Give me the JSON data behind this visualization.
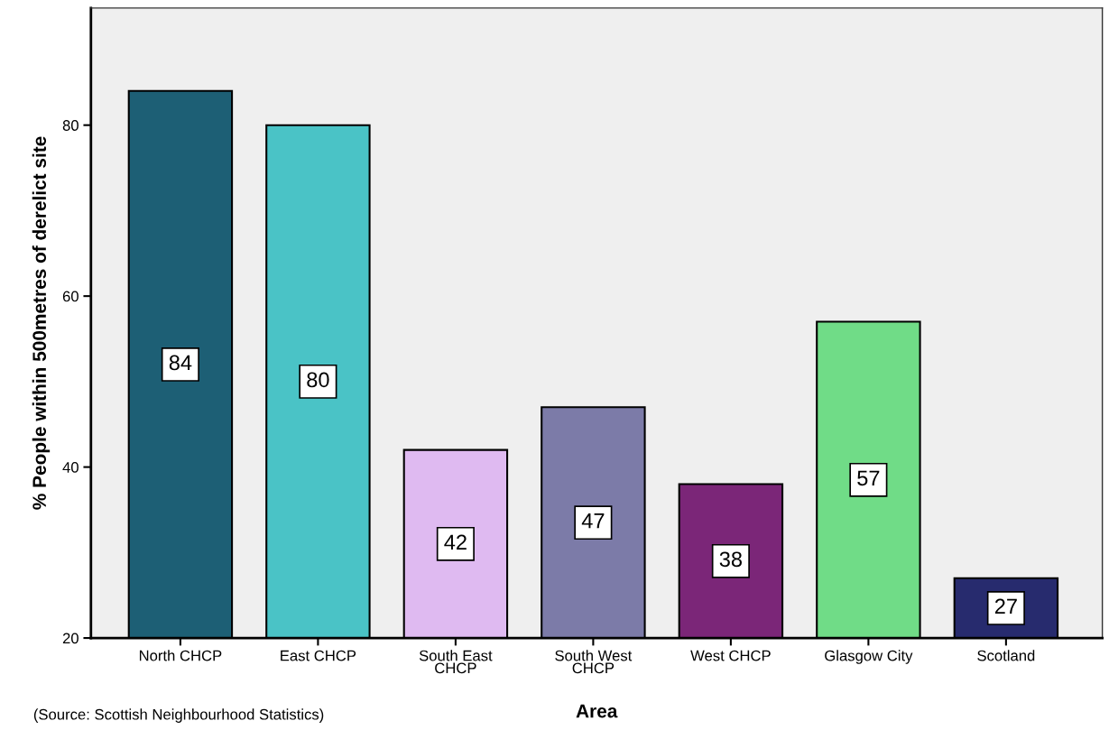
{
  "chart_data": {
    "type": "bar",
    "xlabel": "Area",
    "ylabel": "% People within 500metres of derelict site",
    "categories": [
      "North CHCP",
      "East CHCP",
      "South East\nCHCP",
      "South West\nCHCP",
      "West CHCP",
      "Glasgow City",
      "Scotland"
    ],
    "values": [
      84,
      80,
      42,
      47,
      38,
      57,
      27
    ],
    "colors": [
      "#1d5f75",
      "#4ac3c6",
      "#dfbaf1",
      "#7c7ba8",
      "#7b2678",
      "#70dc87",
      "#272b6e"
    ],
    "ylim": [
      20,
      93.7
    ],
    "yticks": [
      20,
      40,
      60,
      80
    ],
    "grid": false,
    "data_labels": true,
    "annotations": [
      "(Source: Scottish Neighbourhood Statistics)"
    ]
  }
}
